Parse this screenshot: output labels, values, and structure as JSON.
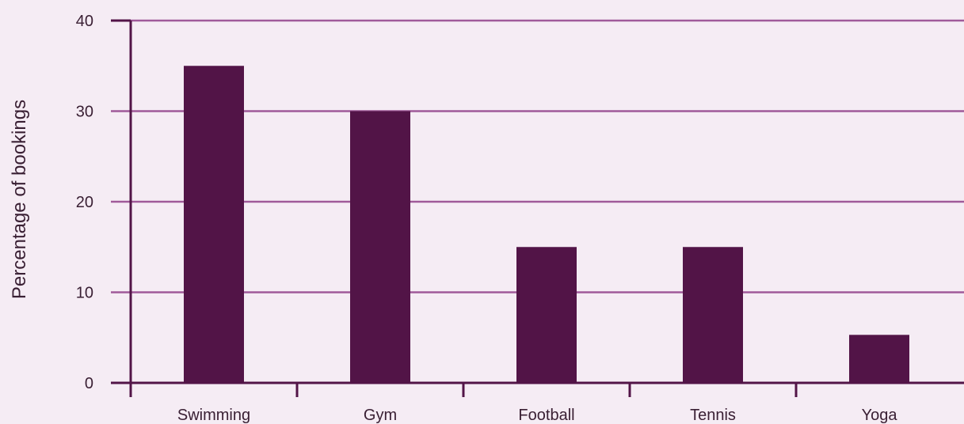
{
  "chart_data": {
    "type": "bar",
    "categories": [
      "Swimming",
      "Gym",
      "Football",
      "Tennis",
      "Yoga"
    ],
    "values": [
      35,
      30,
      15,
      15,
      5.3
    ],
    "title": "",
    "xlabel": "",
    "ylabel": "Percentage of bookings",
    "ylim": [
      0,
      40
    ],
    "yticks": [
      0,
      10,
      20,
      30,
      40
    ],
    "grid": true,
    "legend": "none"
  },
  "colors": {
    "background": "#f5ecf4",
    "bar": "#521447",
    "gridline": "#a05a9a",
    "axis": "#521447",
    "text": "#3a2034"
  }
}
